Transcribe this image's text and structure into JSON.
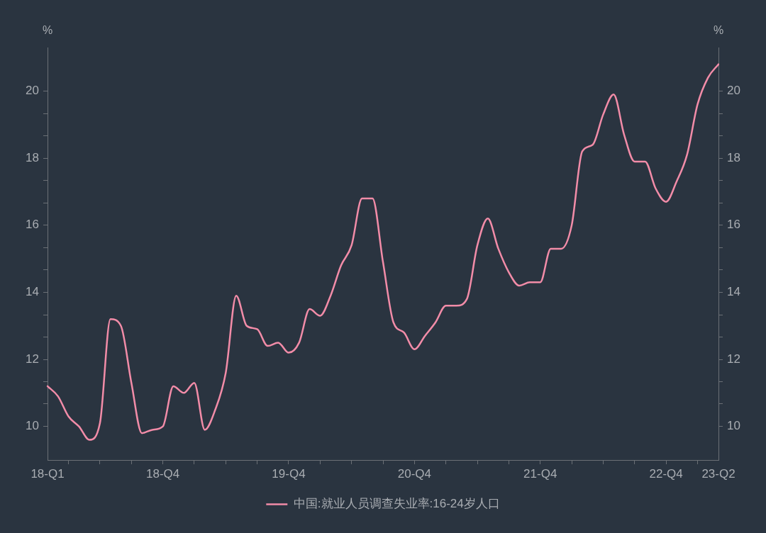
{
  "chart_data": {
    "type": "line",
    "categories": [
      "18-Q1",
      null,
      null,
      null,
      null,
      null,
      null,
      null,
      null,
      null,
      null,
      "18-Q4",
      null,
      null,
      null,
      null,
      null,
      null,
      null,
      null,
      null,
      null,
      null,
      "19-Q4",
      null,
      null,
      null,
      null,
      null,
      null,
      null,
      null,
      null,
      null,
      null,
      "20-Q4",
      null,
      null,
      null,
      null,
      null,
      null,
      null,
      null,
      null,
      null,
      null,
      "21-Q4",
      null,
      null,
      null,
      null,
      null,
      null,
      null,
      null,
      null,
      null,
      null,
      "22-Q4",
      null,
      null,
      null,
      null,
      "23-Q2"
    ],
    "series": [
      {
        "name": "中国:就业人员调查失业率:16-24岁人口",
        "color": "#f28ca8",
        "values": [
          11.2,
          10.9,
          10.3,
          10.0,
          9.6,
          10.1,
          13.2,
          13.0,
          11.3,
          9.8,
          9.9,
          10.0,
          11.2,
          11.0,
          11.3,
          9.9,
          10.5,
          11.6,
          13.9,
          13.0,
          12.9,
          12.4,
          12.5,
          12.2,
          12.5,
          13.5,
          13.3,
          13.9,
          14.8,
          15.4,
          16.8,
          16.8,
          14.9,
          13.1,
          12.8,
          12.3,
          12.7,
          13.1,
          13.6,
          13.6,
          13.8,
          15.4,
          16.2,
          15.3,
          14.6,
          14.2,
          14.3,
          14.3,
          15.3,
          15.3,
          16.0,
          18.2,
          18.4,
          19.3,
          19.9,
          18.7,
          17.9,
          17.9,
          17.1,
          16.7,
          17.3,
          18.1,
          19.6,
          20.4,
          20.8
        ]
      }
    ],
    "ylabel": "%",
    "y2label": "%",
    "ylim": [
      9,
      21.3
    ],
    "yticks": [
      10,
      {
        "value": 10.67,
        "label": null
      },
      {
        "value": 11.33,
        "label": null
      },
      12,
      {
        "value": 12.67,
        "label": null
      },
      {
        "value": 13.33,
        "label": null
      },
      14,
      {
        "value": 14.67,
        "label": null
      },
      {
        "value": 15.33,
        "label": null
      },
      16,
      {
        "value": 16.67,
        "label": null
      },
      {
        "value": 17.33,
        "label": null
      },
      18,
      {
        "value": 18.67,
        "label": null
      },
      {
        "value": 19.33,
        "label": null
      },
      20
    ],
    "y2lim": [
      9,
      21.3
    ],
    "y2ticks": [
      10,
      {
        "value": 10.67,
        "label": null
      },
      {
        "value": 11.33,
        "label": null
      },
      12,
      {
        "value": 12.67,
        "label": null
      },
      {
        "value": 13.33,
        "label": null
      },
      14,
      {
        "value": 14.67,
        "label": null
      },
      {
        "value": 15.33,
        "label": null
      },
      16,
      {
        "value": 16.67,
        "label": null
      },
      {
        "value": 17.33,
        "label": null
      },
      18,
      {
        "value": 18.67,
        "label": null
      },
      {
        "value": 19.33,
        "label": null
      },
      20
    ],
    "legend": "bottom"
  }
}
